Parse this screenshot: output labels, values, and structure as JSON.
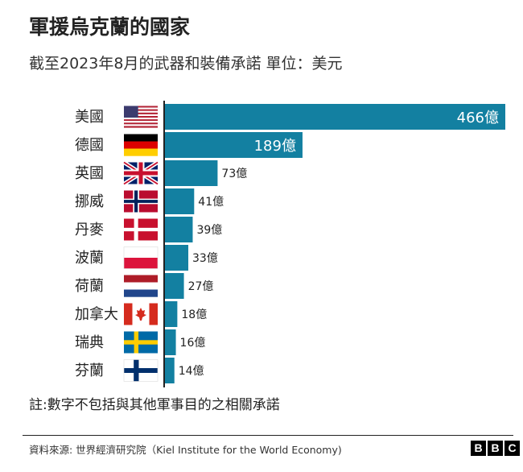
{
  "title": "軍援烏克蘭的國家",
  "subtitle": "截至2023年8月的武器和裝備承諾 單位：美元",
  "note": "註:數字不包括與其他軍事目的之相關承諾",
  "source": "資料來源: 世界經濟研究院（Kiel Institute for the World Economy)",
  "logo": [
    "B",
    "B",
    "C"
  ],
  "colors": {
    "bar": "#1380a1",
    "axis": "#222222"
  },
  "chart_data": {
    "type": "bar",
    "orientation": "horizontal",
    "categories": [
      "美國",
      "德國",
      "英國",
      "挪威",
      "丹麥",
      "波蘭",
      "荷蘭",
      "加拿大",
      "瑞典",
      "芬蘭"
    ],
    "values": [
      466,
      189,
      73,
      41,
      39,
      33,
      27,
      18,
      16,
      14
    ],
    "value_labels": [
      "466億",
      "189億",
      "73億",
      "41億",
      "39億",
      "33億",
      "27億",
      "18億",
      "16億",
      "14億"
    ],
    "flags": [
      "flag-usa",
      "flag-germany",
      "flag-uk",
      "flag-norway",
      "flag-denmark",
      "flag-poland",
      "flag-netherlands",
      "flag-canada",
      "flag-sweden",
      "flag-finland"
    ],
    "xlim": [
      0,
      466
    ],
    "grid": false,
    "legend": "none"
  }
}
